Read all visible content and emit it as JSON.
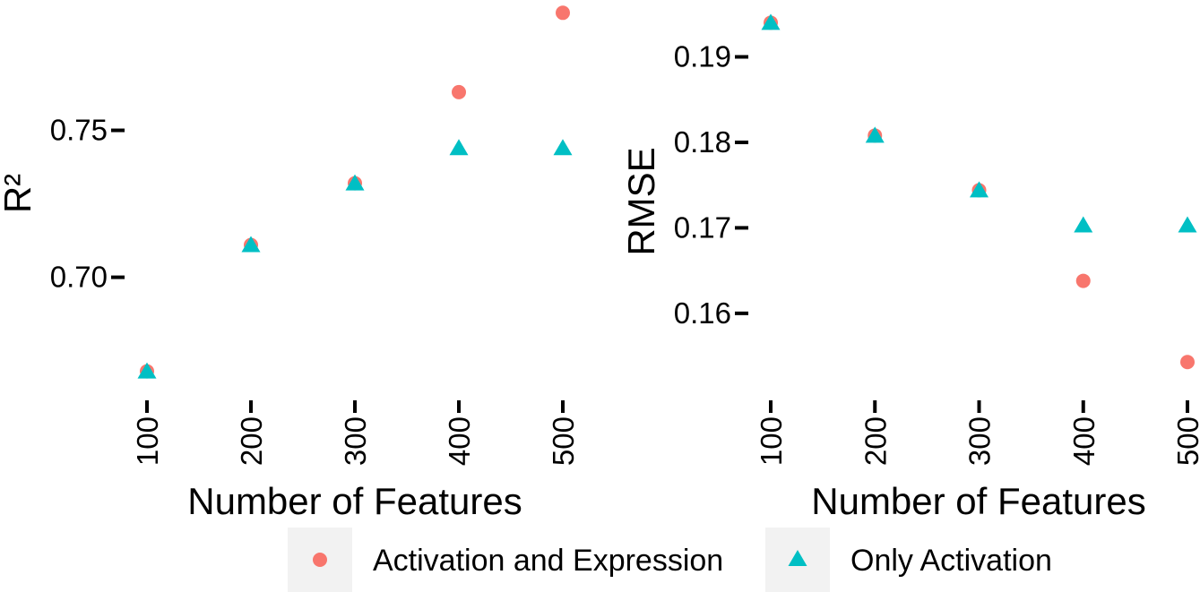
{
  "colors": {
    "activation_and_expression": "#F8766D",
    "only_activation": "#00BFC4",
    "legend_key_bg": "#F2F2F2"
  },
  "chart_data": [
    {
      "type": "scatter",
      "title": "",
      "xlabel": "Number of Features",
      "ylabel": "R²",
      "x": [
        100,
        200,
        300,
        400,
        500
      ],
      "xticks": [
        "100",
        "200",
        "300",
        "400",
        "500"
      ],
      "yticks": [
        0.7,
        0.75
      ],
      "ytick_labels": [
        "0.70",
        "0.75"
      ],
      "ylim": [
        0.663,
        0.791
      ],
      "grid": false,
      "series": [
        {
          "name": "Activation and Expression",
          "marker": "circle",
          "values": [
            0.668,
            0.711,
            0.732,
            0.763,
            0.79
          ]
        },
        {
          "name": "Only Activation",
          "marker": "triangle",
          "values": [
            0.668,
            0.711,
            0.732,
            0.744,
            0.744
          ]
        }
      ]
    },
    {
      "type": "scatter",
      "title": "",
      "xlabel": "Number of Features",
      "ylabel": "RMSE",
      "x": [
        100,
        200,
        300,
        400,
        500
      ],
      "xticks": [
        "100",
        "200",
        "300",
        "400",
        "500"
      ],
      "yticks": [
        0.16,
        0.17,
        0.18,
        0.19
      ],
      "ytick_labels": [
        "0.16",
        "0.17",
        "0.18",
        "0.19"
      ],
      "ylim": [
        0.1515,
        0.1955
      ],
      "grid": false,
      "series": [
        {
          "name": "Activation and Expression",
          "marker": "circle",
          "values": [
            0.194,
            0.1808,
            0.1744,
            0.1638,
            0.1543
          ]
        },
        {
          "name": "Only Activation",
          "marker": "triangle",
          "values": [
            0.194,
            0.1808,
            0.1744,
            0.1703,
            0.1703
          ]
        }
      ]
    }
  ],
  "legend": {
    "placement": "bottom",
    "items": [
      {
        "label": "Activation and Expression",
        "marker": "circle"
      },
      {
        "label": "Only Activation",
        "marker": "triangle"
      }
    ]
  }
}
